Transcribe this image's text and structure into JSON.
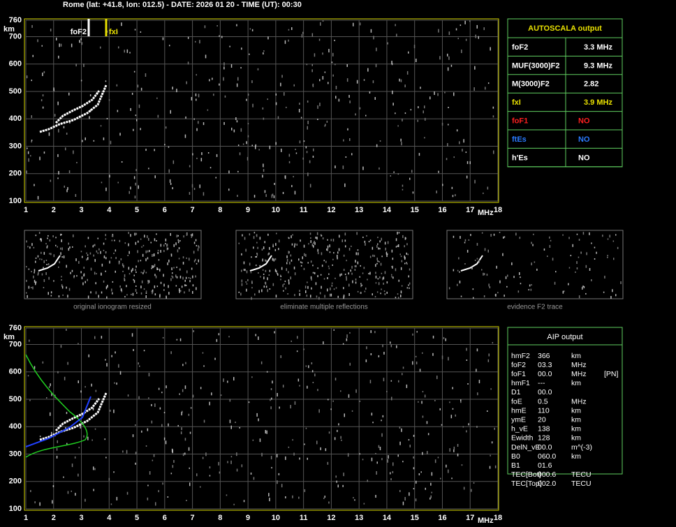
{
  "header": "Rome (lat: +41.8, lon: 012.5) - DATE: 2026 01 20 - TIME (UT): 00:30",
  "ionograms": [
    {
      "y_unit": "km",
      "x_unit": "MHz",
      "ylim": [
        100,
        760
      ],
      "yticks": [
        100,
        200,
        300,
        400,
        500,
        600,
        700,
        760
      ],
      "xlim": [
        1,
        18
      ],
      "xticks": [
        1,
        2,
        3,
        4,
        5,
        6,
        7,
        8,
        9,
        10,
        11,
        12,
        13,
        14,
        15,
        16,
        17,
        18
      ],
      "labels": [
        "foF2",
        "fxI"
      ]
    },
    {
      "y_unit": "km",
      "x_unit": "MHz",
      "ylim": [
        100,
        760
      ],
      "yticks": [
        100,
        200,
        300,
        400,
        500,
        600,
        700,
        760
      ],
      "xlim": [
        1,
        18
      ],
      "xticks": [
        1,
        2,
        3,
        4,
        5,
        6,
        7,
        8,
        9,
        10,
        11,
        12,
        13,
        14,
        15,
        16,
        17,
        18
      ]
    }
  ],
  "thumbnails": [
    "original ionogram resized",
    "eliminate multiple reflections",
    "evidence F2 trace"
  ],
  "autoscala": {
    "title": "AUTOSCALA output",
    "rows": [
      {
        "label": "foF2",
        "value": "3.3 MHz",
        "color": "#ffffff"
      },
      {
        "label": "MUF(3000)F2",
        "value": "9.3 MHz",
        "color": "#ffffff"
      },
      {
        "label": "M(3000)F2",
        "value": "2.82",
        "color": "#ffffff"
      },
      {
        "label": "fxI",
        "value": "3.9 MHz",
        "color": "#e8e000"
      },
      {
        "label": "foF1",
        "value": "NO",
        "color": "#ff2020"
      },
      {
        "label": "ftEs",
        "value": "NO",
        "color": "#2a7bff"
      },
      {
        "label": "h'Es",
        "value": "NO",
        "color": "#ffffff"
      }
    ]
  },
  "aip": {
    "title": "AIP output",
    "rows": [
      [
        "hmF2",
        "366",
        "km"
      ],
      [
        "foF2",
        "03.3",
        "MHz"
      ],
      [
        "foF1",
        "00.0",
        "MHz",
        "[PN]"
      ],
      [
        "hmF1",
        "---",
        "km"
      ],
      [
        "D1",
        "00.0"
      ],
      [
        "foE",
        "0.5",
        "MHz"
      ],
      [
        "hmE",
        "110",
        "km"
      ],
      [
        "ymE",
        "20",
        "km"
      ],
      [
        "h_vE",
        "138",
        "km"
      ],
      [
        "Ewidth",
        "128",
        "km"
      ],
      [
        "DelN_vE",
        "00.0",
        "m^(-3)"
      ],
      [
        "B0",
        "060.0",
        "km"
      ],
      [
        "B1",
        "01.6"
      ],
      [
        "TEC[Bot]",
        "000.6",
        "TECU"
      ],
      [
        "TEC[Top]",
        "002.0",
        "TECU"
      ]
    ]
  }
}
